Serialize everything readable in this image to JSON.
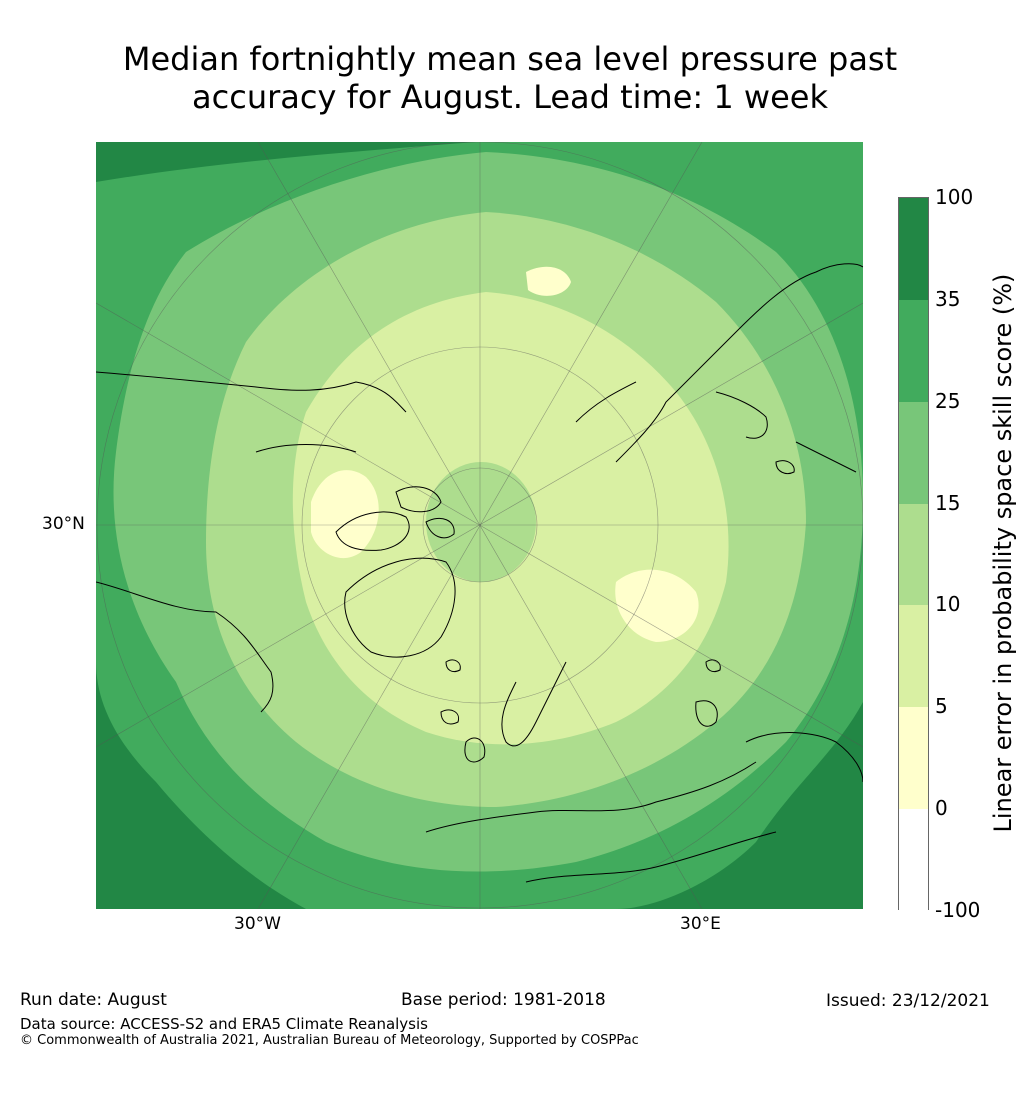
{
  "title_line1": "Median fortnightly mean sea level pressure past",
  "title_line2": "accuracy for August. Lead time: 1 week",
  "map": {
    "projection": "north-polar-stereographic",
    "labels": {
      "lat": "30°N",
      "lon_west": "30°W",
      "lon_east": "30°E"
    },
    "colors": {
      "level_35_100": "#228745",
      "level_25_35": "#41ab5d",
      "level_15_25": "#78c679",
      "level_10_15": "#addd8e",
      "level_5_10": "#d9f0a3",
      "level_0_5": "#ffffcc",
      "coastline": "#000000"
    }
  },
  "colorbar": {
    "title": "Linear error in probability space skill score (%)",
    "ticks": [
      "100",
      "35",
      "25",
      "15",
      "10",
      "5",
      "0",
      "-100"
    ],
    "segments": [
      {
        "range": "35–100",
        "color": "#228745"
      },
      {
        "range": "25–35",
        "color": "#41ab5d"
      },
      {
        "range": "15–25",
        "color": "#78c679"
      },
      {
        "range": "10–15",
        "color": "#addd8e"
      },
      {
        "range": "5–10",
        "color": "#d9f0a3"
      },
      {
        "range": "0–5",
        "color": "#ffffcc"
      },
      {
        "range": "-100–0",
        "color": "#ffffff"
      }
    ]
  },
  "footer": {
    "run_date": "Run date: August",
    "base_period": "Base period: 1981-2018",
    "issued": "Issued: 23/12/2021",
    "data_source": "Data source: ACCESS-S2 and ERA5 Climate Reanalysis",
    "copyright": "© Commonwealth of Australia 2021, Australian Bureau of Meteorology, Supported by COSPPac"
  }
}
